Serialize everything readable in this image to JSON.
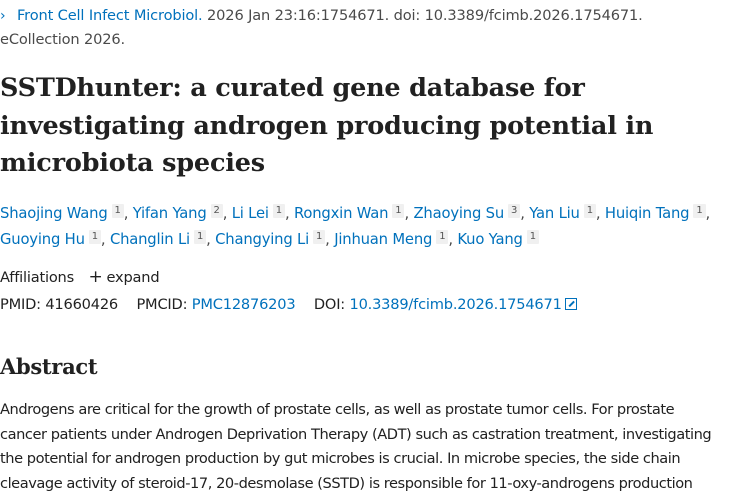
{
  "citation": {
    "journal": "Front Cell Infect Microbiol.",
    "details": " 2026 Jan 23:16:1754671. doi: 10.3389/fcimb.2026.1754671.",
    "line2": "eCollection 2026.",
    "chevron_icon": "›"
  },
  "title": {
    "lines": [
      "SSTDhunter: a curated gene database for",
      "investigating androgen producing potential in",
      "microbiota species"
    ]
  },
  "authors": [
    {
      "name": "Shaojing Wang",
      "aff": "1"
    },
    {
      "name": "Yifan Yang",
      "aff": "2"
    },
    {
      "name": "Li Lei",
      "aff": "1"
    },
    {
      "name": "Rongxin Wan",
      "aff": "1"
    },
    {
      "name": "Zhaoying Su",
      "aff": "3"
    },
    {
      "name": "Yan Liu",
      "aff": "1"
    },
    {
      "name": "Huiqin Tang",
      "aff": "1"
    },
    {
      "name": "Guoying Hu",
      "aff": "1"
    },
    {
      "name": "Changlin Li",
      "aff": "1"
    },
    {
      "name": "Changying Li",
      "aff": "1"
    },
    {
      "name": "Jinhuan Meng",
      "aff": "1"
    },
    {
      "name": "Kuo Yang",
      "aff": "1"
    }
  ],
  "affiliations": {
    "label": "Affiliations",
    "plus_icon": "+",
    "expand_label": "expand"
  },
  "identifiers": {
    "pmid_label": "PMID:",
    "pmid": "41660426",
    "pmcid_label": "PMCID:",
    "pmcid": "PMC12876203",
    "doi_label": "DOI:",
    "doi": "10.3389/fcimb.2026.1754671"
  },
  "abstract": {
    "heading": "Abstract",
    "lines": [
      "Androgens are critical for the growth of prostate cells, as well as prostate tumor cells. For prostate",
      "cancer patients under Androgen Deprivation Therapy (ADT) such as castration treatment, investigating",
      "the potential for androgen production by gut microbes is crucial. In microbe species, the side chain",
      "cleavage activity of steroid-17, 20-desmolase (SSTD) is responsible for 11-oxy-androgens production"
    ]
  },
  "colors": {
    "link": "#0071bc",
    "text": "#212121",
    "muted": "#4a4a4a"
  }
}
